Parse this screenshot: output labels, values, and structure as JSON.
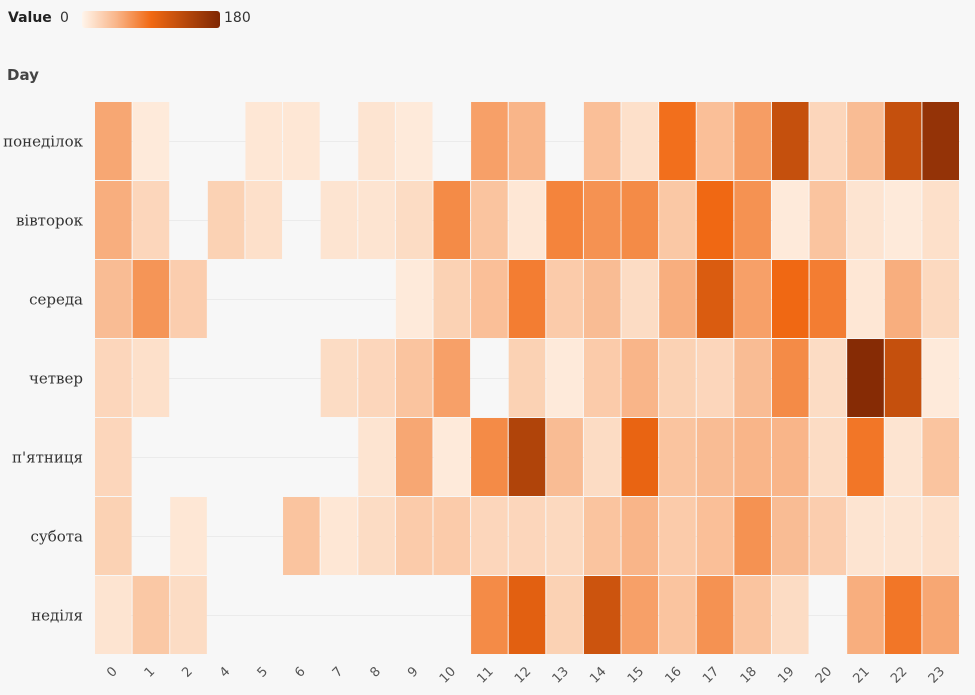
{
  "legend": {
    "title": "Value",
    "min_label": "0",
    "max_label": "180",
    "min": 0,
    "max": 180
  },
  "chart_data": {
    "type": "heatmap",
    "title": "",
    "xlabel": "",
    "ylabel": "Day",
    "x_categories": [
      "0",
      "1",
      "2",
      "4",
      "5",
      "6",
      "7",
      "8",
      "9",
      "10",
      "11",
      "12",
      "13",
      "14",
      "15",
      "16",
      "17",
      "18",
      "19",
      "20",
      "21",
      "22",
      "23"
    ],
    "y_categories": [
      "понеділок",
      "вівторок",
      "середа",
      "четвер",
      "п'ятниця",
      "субота",
      "неділя"
    ],
    "color_scale": {
      "low": "#fff5eb",
      "mid": "#f16913",
      "high": "#7f2704"
    },
    "values": [
      [
        55,
        8,
        null,
        null,
        10,
        10,
        null,
        12,
        8,
        null,
        60,
        45,
        null,
        38,
        15,
        95,
        38,
        62,
        130,
        22,
        40,
        130,
        165
      ],
      [
        50,
        22,
        null,
        25,
        15,
        null,
        12,
        12,
        18,
        75,
        35,
        10,
        80,
        70,
        75,
        32,
        100,
        70,
        8,
        35,
        12,
        8,
        15
      ],
      [
        40,
        68,
        28,
        null,
        null,
        null,
        null,
        null,
        8,
        25,
        38,
        85,
        30,
        40,
        18,
        50,
        115,
        60,
        100,
        85,
        10,
        50,
        20
      ],
      [
        22,
        15,
        null,
        null,
        null,
        null,
        18,
        22,
        35,
        60,
        null,
        25,
        8,
        30,
        45,
        25,
        22,
        40,
        75,
        18,
        175,
        130,
        8
      ],
      [
        22,
        null,
        null,
        null,
        null,
        null,
        null,
        12,
        55,
        8,
        75,
        145,
        40,
        18,
        105,
        35,
        40,
        45,
        45,
        18,
        90,
        12,
        35
      ],
      [
        25,
        null,
        10,
        null,
        null,
        35,
        10,
        18,
        30,
        30,
        22,
        22,
        20,
        35,
        45,
        30,
        38,
        70,
        40,
        28,
        12,
        12,
        15
      ],
      [
        12,
        32,
        18,
        null,
        null,
        null,
        null,
        null,
        null,
        null,
        75,
        110,
        25,
        125,
        60,
        35,
        70,
        35,
        18,
        null,
        50,
        90,
        55
      ]
    ]
  }
}
